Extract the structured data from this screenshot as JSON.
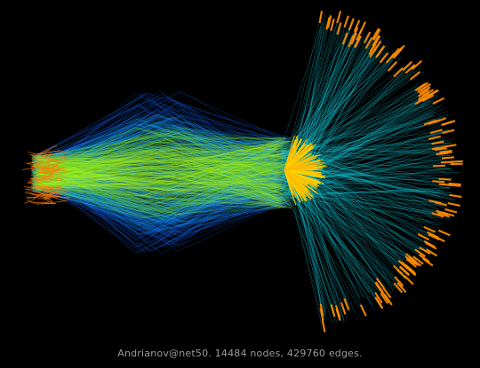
{
  "caption": "Andrianov@net50. 14484 nodes, 429760 edges.",
  "colors": {
    "background": "#000000",
    "lens_outer": "#1565ff",
    "lens_mid": "#12a9f2",
    "lens_inner_green": "#7fe000",
    "lens_inner_yellow": "#c9ff1a",
    "hub": "#ffd000",
    "hub_edge": "#ffb400",
    "fan_edges": "#12dcf0",
    "fan_rim": "#ff8c00",
    "left_cap": "#ff7a00"
  }
}
